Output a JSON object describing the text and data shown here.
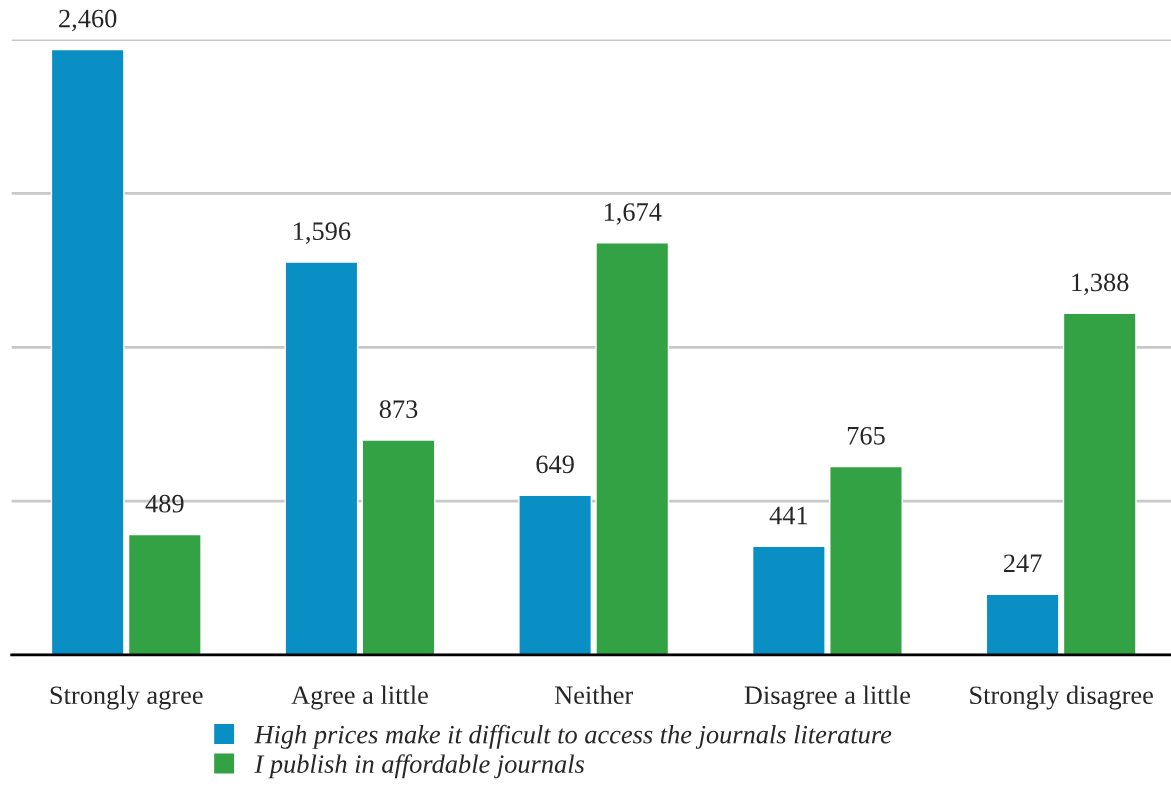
{
  "chart_data": {
    "type": "bar",
    "categories": [
      "Strongly agree",
      "Agree a little",
      "Neither",
      "Disagree a little",
      "Strongly disagree"
    ],
    "series": [
      {
        "name": "High prices make it difficult to access the journals literature",
        "color": "#0a8fc4",
        "values": [
          2460,
          1596,
          649,
          441,
          247
        ],
        "value_labels": [
          "2,460",
          "1,596",
          "649",
          "441",
          "247"
        ]
      },
      {
        "name": "I publish in affordable journals",
        "color": "#33a244",
        "values": [
          489,
          873,
          1674,
          765,
          1388
        ],
        "value_labels": [
          "489",
          "873",
          "1,674",
          "765",
          "1,388"
        ]
      }
    ],
    "ylim": [
      0,
      2500
    ],
    "yticks": [
      {
        "value": 0,
        "label": null
      },
      {
        "value": 625,
        "label": null
      },
      {
        "value": 1250,
        "label": null
      },
      {
        "value": 1875,
        "label": null
      },
      {
        "value": 2500,
        "label": null
      }
    ],
    "tick_labels": "x",
    "grid": "y",
    "legend": "bottom"
  }
}
